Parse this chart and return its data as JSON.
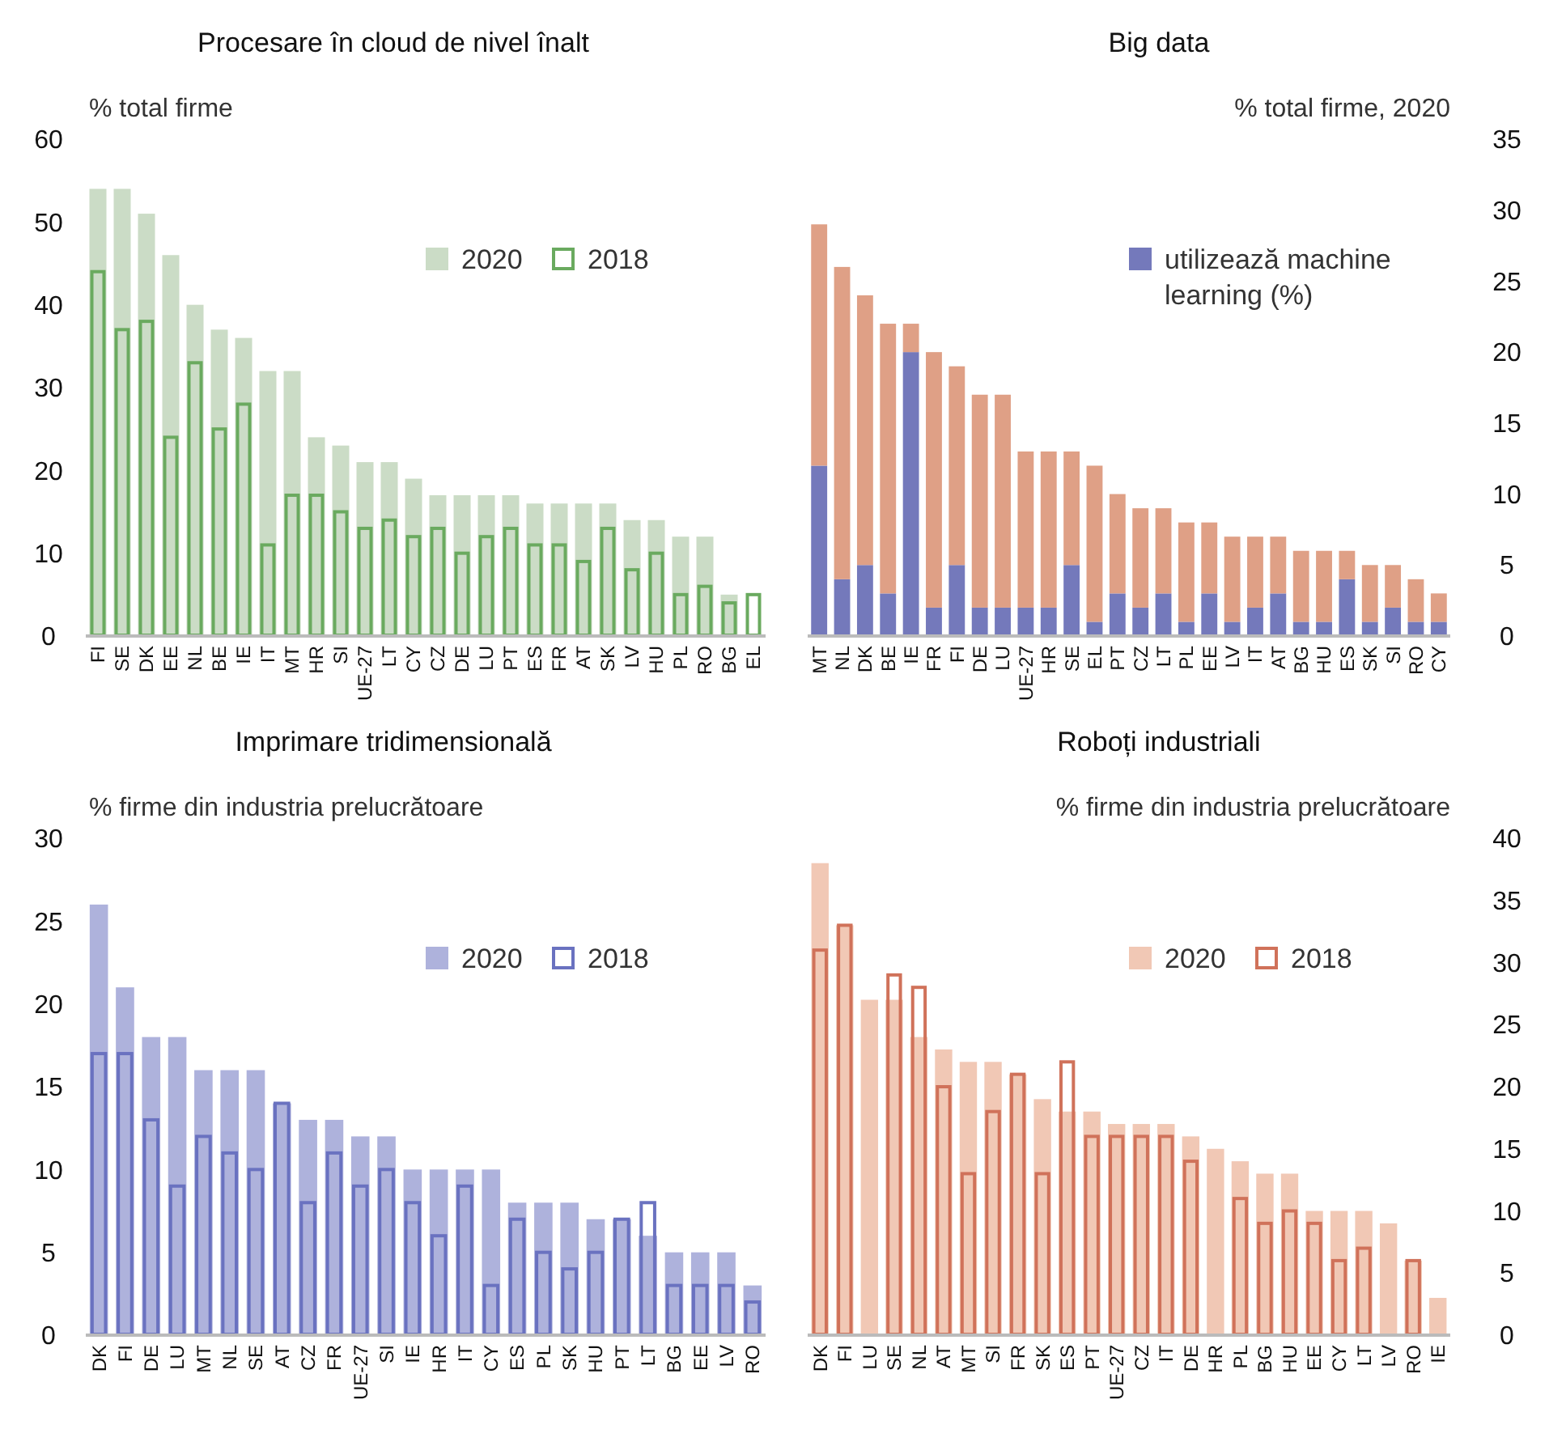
{
  "chart_data": [
    {
      "type": "bar",
      "title": "Procesare în cloud de nivel înalt",
      "ylabel": "% total firme",
      "categories": [
        "FI",
        "SE",
        "DK",
        "EE",
        "NL",
        "BE",
        "IE",
        "IT",
        "MT",
        "HR",
        "SI",
        "UE-27",
        "LT",
        "CY",
        "CZ",
        "DE",
        "LU",
        "PT",
        "ES",
        "FR",
        "AT",
        "SK",
        "LV",
        "HU",
        "PL",
        "RO",
        "BG",
        "EL"
      ],
      "series": [
        {
          "name": "2020",
          "color": "#cbdcc6",
          "values": [
            54,
            54,
            51,
            46,
            40,
            37,
            36,
            32,
            32,
            24,
            23,
            21,
            21,
            19,
            17,
            17,
            17,
            17,
            16,
            16,
            16,
            16,
            14,
            14,
            12,
            12,
            5,
            null
          ]
        },
        {
          "name": "2018",
          "color": "#6aaa5f",
          "values": [
            44,
            37,
            38,
            24,
            33,
            25,
            28,
            11,
            17,
            17,
            15,
            13,
            14,
            12,
            13,
            10,
            12,
            13,
            11,
            11,
            9,
            13,
            8,
            10,
            5,
            6,
            4,
            5
          ]
        }
      ],
      "ylim": [
        0,
        60
      ],
      "yticks": [
        0,
        10,
        20,
        30,
        40,
        50,
        60
      ],
      "legend": "top right",
      "grid": false
    },
    {
      "type": "bar",
      "title": "Big data",
      "ylabel": "% total firme, 2020",
      "stacked": true,
      "categories": [
        "MT",
        "NL",
        "DK",
        "BE",
        "IE",
        "FR",
        "FI",
        "DE",
        "LU",
        "UE-27",
        "HR",
        "SE",
        "EL",
        "PT",
        "CZ",
        "LT",
        "PL",
        "EE",
        "LV",
        "IT",
        "AT",
        "BG",
        "HU",
        "ES",
        "SK",
        "SI",
        "RO",
        "CY"
      ],
      "series": [
        {
          "name": "utilizează machine learning (%)",
          "color": "#7479bb",
          "axis": "y2",
          "values": [
            12,
            4,
            5,
            3,
            20,
            2,
            5,
            2,
            2,
            2,
            2,
            5,
            1,
            3,
            2,
            3,
            1,
            3,
            1,
            2,
            3,
            1,
            1,
            4,
            1,
            2,
            1,
            1
          ]
        },
        {
          "color": "#dfa086",
          "axis": "y2",
          "values": [
            17,
            22,
            19,
            19,
            2,
            18,
            14,
            15,
            15,
            11,
            11,
            8,
            11,
            7,
            7,
            6,
            7,
            5,
            6,
            5,
            4,
            5,
            5,
            2,
            4,
            3,
            3,
            2
          ]
        }
      ],
      "y2lim": [
        0,
        35
      ],
      "y2ticks": [
        0,
        5,
        10,
        15,
        20,
        25,
        30,
        35
      ],
      "legend": "top right",
      "grid": false
    },
    {
      "type": "bar",
      "title": "Imprimare tridimensională",
      "ylabel": "% firme din industria prelucrătoare",
      "categories": [
        "DK",
        "FI",
        "DE",
        "LU",
        "MT",
        "NL",
        "SE",
        "AT",
        "CZ",
        "FR",
        "UE-27",
        "SI",
        "IE",
        "HR",
        "IT",
        "CY",
        "ES",
        "PL",
        "SK",
        "HU",
        "PT",
        "LT",
        "BG",
        "EE",
        "LV",
        "RO"
      ],
      "series": [
        {
          "name": "2020",
          "color": "#aeb2dc",
          "values": [
            26,
            21,
            18,
            18,
            16,
            16,
            16,
            14,
            13,
            13,
            12,
            12,
            10,
            10,
            10,
            10,
            8,
            8,
            8,
            7,
            7,
            6,
            5,
            5,
            5,
            3
          ]
        },
        {
          "name": "2018",
          "color": "#6a72c0",
          "values": [
            17,
            17,
            13,
            9,
            12,
            11,
            10,
            14,
            8,
            11,
            9,
            10,
            8,
            6,
            9,
            3,
            7,
            5,
            4,
            5,
            7,
            8,
            3,
            3,
            3,
            2
          ]
        }
      ],
      "ylim": [
        0,
        30
      ],
      "yticks": [
        0,
        5,
        10,
        15,
        20,
        25,
        30
      ],
      "legend": "top right",
      "grid": false
    },
    {
      "type": "bar",
      "title": "Roboți industriali",
      "ylabel": "% firme din industria prelucrătoare",
      "categories": [
        "DK",
        "FI",
        "LU",
        "SE",
        "NL",
        "AT",
        "MT",
        "SI",
        "FR",
        "SK",
        "ES",
        "PT",
        "UE-27",
        "CZ",
        "IT",
        "DE",
        "HR",
        "PL",
        "BG",
        "HU",
        "EE",
        "CY",
        "LT",
        "LV",
        "RO",
        "IE"
      ],
      "series": [
        {
          "name": "2020",
          "color": "#f1c8b5",
          "axis": "y2",
          "values": [
            38,
            33,
            27,
            27,
            24,
            23,
            22,
            22,
            21,
            19,
            18,
            18,
            17,
            17,
            17,
            16,
            15,
            14,
            13,
            13,
            10,
            10,
            10,
            9,
            6,
            3
          ]
        },
        {
          "name": "2018",
          "color": "#d0725a",
          "axis": "y2",
          "values": [
            31,
            33,
            null,
            29,
            28,
            20,
            13,
            18,
            21,
            13,
            22,
            16,
            16,
            16,
            16,
            14,
            null,
            11,
            9,
            10,
            9,
            6,
            7,
            null,
            6,
            null
          ]
        }
      ],
      "y2lim": [
        0,
        40
      ],
      "y2ticks": [
        0,
        5,
        10,
        15,
        20,
        25,
        30,
        35,
        40
      ],
      "legend": "top right",
      "grid": false
    }
  ]
}
